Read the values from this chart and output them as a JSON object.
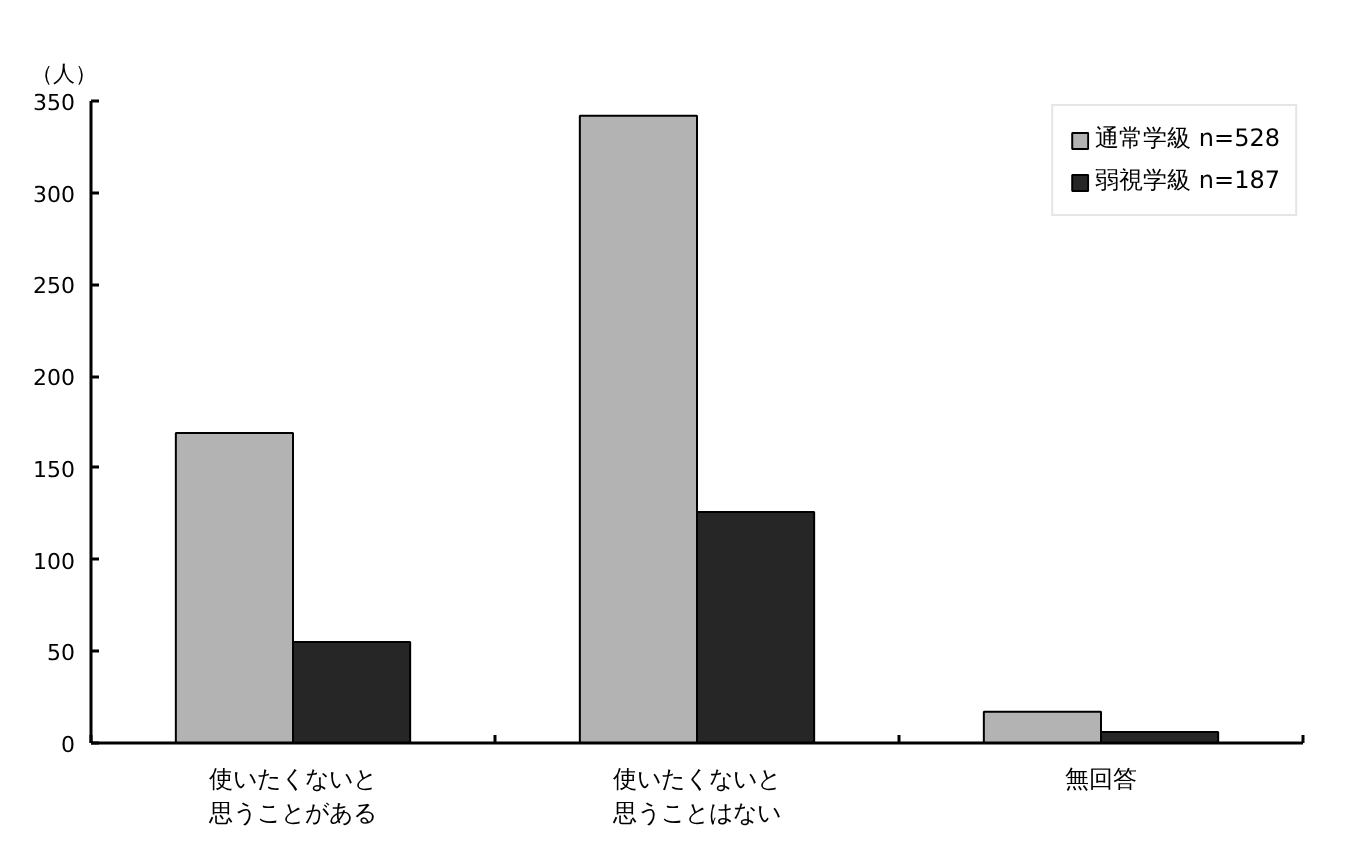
{
  "chart_data": {
    "type": "bar",
    "ylabel": "（人）",
    "categories": [
      "使いたくないと思うことがある",
      "使いたくないと思うことはない",
      "無回答"
    ],
    "series": [
      {
        "name": "通常学級 n=528",
        "color": "#b3b3b3",
        "values": [
          169,
          342,
          17
        ]
      },
      {
        "name": "弱視学級 n=187",
        "color": "#262626",
        "values": [
          55,
          126,
          6
        ]
      }
    ],
    "ylim": [
      0,
      350
    ],
    "yticks": [
      0,
      50,
      100,
      150,
      200,
      250,
      300,
      350
    ],
    "grid": false,
    "legend": "top right"
  }
}
